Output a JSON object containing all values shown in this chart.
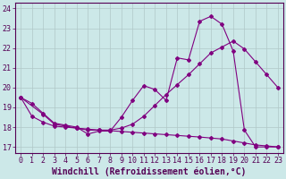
{
  "xlabel": "Windchill (Refroidissement éolien,°C)",
  "background_color": "#cce8e8",
  "line_color": "#800080",
  "xlim": [
    -0.5,
    23.5
  ],
  "ylim": [
    16.7,
    24.3
  ],
  "yticks": [
    17,
    18,
    19,
    20,
    21,
    22,
    23,
    24
  ],
  "xticks": [
    0,
    1,
    2,
    3,
    4,
    5,
    6,
    7,
    8,
    9,
    10,
    11,
    12,
    13,
    14,
    15,
    16,
    17,
    18,
    19,
    20,
    21,
    22,
    23
  ],
  "curve1_x": [
    0,
    1,
    2,
    3,
    4,
    5,
    6,
    7,
    8,
    9,
    10,
    11,
    12,
    13,
    14,
    15,
    16,
    17,
    18,
    19,
    20,
    21,
    22,
    23
  ],
  "curve1_y": [
    19.5,
    19.2,
    18.7,
    18.2,
    18.1,
    18.0,
    17.65,
    17.8,
    17.8,
    18.5,
    19.35,
    20.1,
    19.9,
    19.35,
    21.5,
    21.4,
    23.35,
    23.6,
    23.2,
    21.85,
    17.85,
    17.0,
    17.0,
    17.0
  ],
  "curve2_x": [
    0,
    2,
    3,
    4,
    5,
    6,
    7,
    8,
    9,
    10,
    11,
    12,
    13,
    14,
    15,
    16,
    17,
    18,
    19,
    20,
    21,
    22,
    23
  ],
  "curve2_y": [
    19.5,
    18.65,
    18.15,
    18.05,
    17.95,
    17.85,
    17.85,
    17.85,
    17.95,
    18.15,
    18.55,
    19.1,
    19.65,
    20.15,
    20.65,
    21.2,
    21.75,
    22.05,
    22.35,
    21.95,
    21.3,
    20.65,
    20.0
  ],
  "curve3_x": [
    0,
    1,
    2,
    3,
    4,
    5,
    6,
    7,
    8,
    9,
    10,
    11,
    12,
    13,
    14,
    15,
    16,
    17,
    18,
    19,
    20,
    21,
    22,
    23
  ],
  "curve3_y": [
    19.5,
    18.55,
    18.25,
    18.05,
    18.0,
    17.95,
    17.9,
    17.85,
    17.82,
    17.78,
    17.74,
    17.7,
    17.66,
    17.62,
    17.58,
    17.54,
    17.5,
    17.45,
    17.4,
    17.3,
    17.2,
    17.1,
    17.05,
    17.0
  ],
  "grid_color": "#b0c8c8",
  "tick_fontsize": 6,
  "xlabel_fontsize": 7,
  "marker": "D",
  "marker_size": 2,
  "lw": 0.8
}
